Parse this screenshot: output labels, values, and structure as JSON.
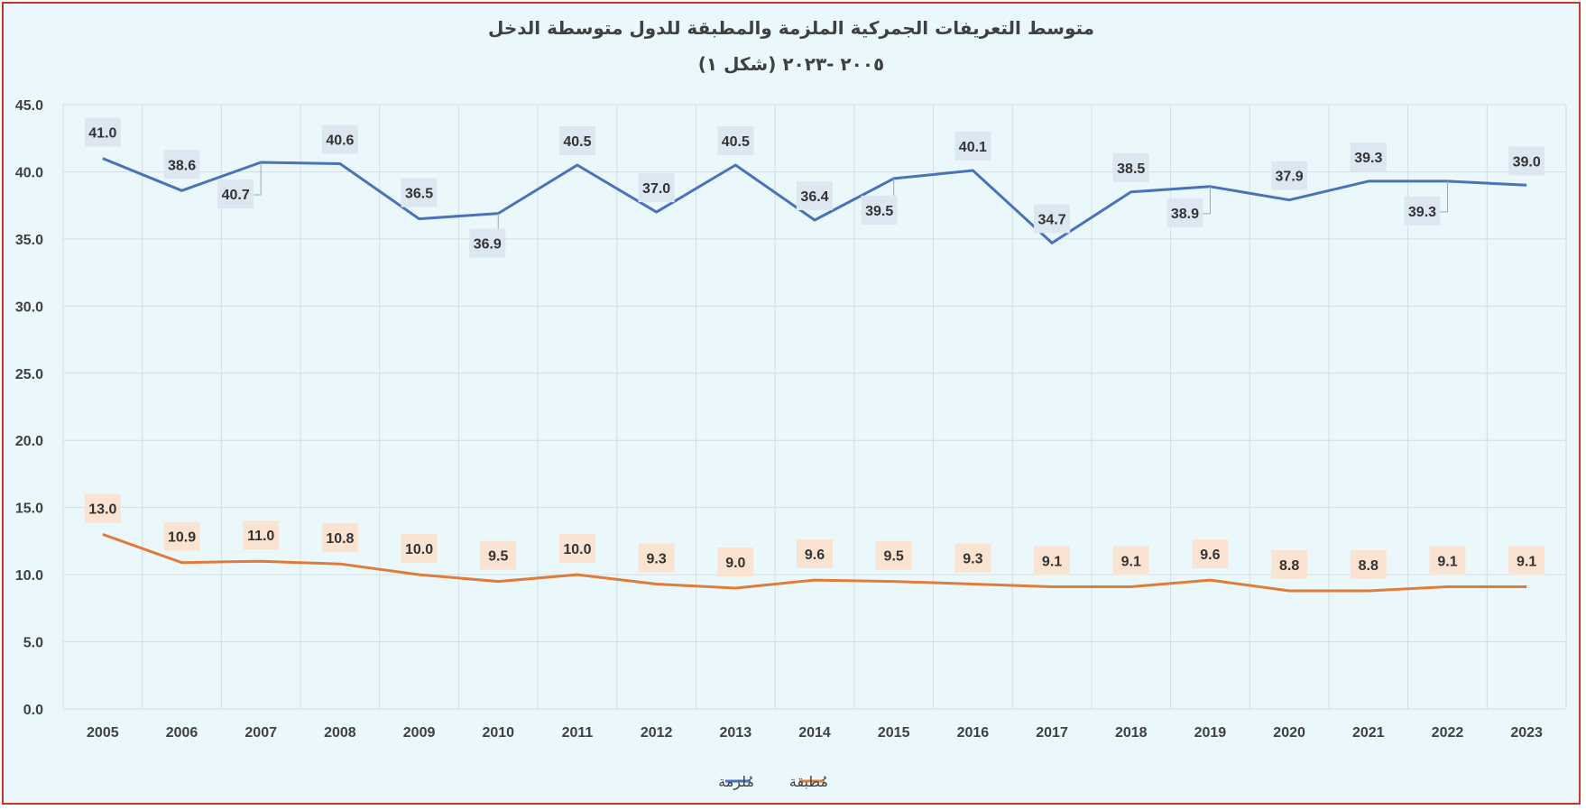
{
  "chart_data": {
    "type": "line",
    "title": "متوسط التعريفات الجمركية الملزمة والمطبقة للدول متوسطة الدخل",
    "subtitle": "٢٠٠٥ -٢٠٢٣ (شكل ١)",
    "categories": [
      "2005",
      "2006",
      "2007",
      "2008",
      "2009",
      "2010",
      "2011",
      "2012",
      "2013",
      "2014",
      "2015",
      "2016",
      "2017",
      "2018",
      "2019",
      "2020",
      "2021",
      "2022",
      "2023"
    ],
    "ylim": [
      0,
      45
    ],
    "yticks": [
      "0.0",
      "5.0",
      "10.0",
      "15.0",
      "20.0",
      "25.0",
      "30.0",
      "35.0",
      "40.0",
      "45.0"
    ],
    "grid": true,
    "legend_position": "bottom",
    "series": [
      {
        "name": "مُلزمة",
        "color": "#4a72b8",
        "label_bg": "#dde7f2",
        "values": [
          41.0,
          38.6,
          40.7,
          40.6,
          36.5,
          36.9,
          40.5,
          37.0,
          40.5,
          36.4,
          39.5,
          40.1,
          34.7,
          38.5,
          38.9,
          37.9,
          39.3,
          39.3,
          39.0
        ],
        "labels": [
          "41.0",
          "38.6",
          "40.7",
          "40.6",
          "36.5",
          "36.9",
          "40.5",
          "37.0",
          "40.5",
          "36.4",
          "39.5",
          "40.1",
          "34.7",
          "38.5",
          "38.9",
          "37.9",
          "39.3",
          "39.3",
          "39.0"
        ]
      },
      {
        "name": "مُطبقة",
        "color": "#e07b39",
        "label_bg": "#fbe3d1",
        "values": [
          13.0,
          10.9,
          11.0,
          10.8,
          10.0,
          9.5,
          10.0,
          9.3,
          9.0,
          9.6,
          9.5,
          9.3,
          9.1,
          9.1,
          9.6,
          8.8,
          8.8,
          9.1,
          9.1
        ],
        "labels": [
          "13.0",
          "10.9",
          "11.0",
          "10.8",
          "10.0",
          "9.5",
          "10.0",
          "9.3",
          "9.0",
          "9.6",
          "9.5",
          "9.3",
          "9.1",
          "9.1",
          "9.6",
          "8.8",
          "8.8",
          "9.1",
          "9.1"
        ]
      }
    ]
  }
}
